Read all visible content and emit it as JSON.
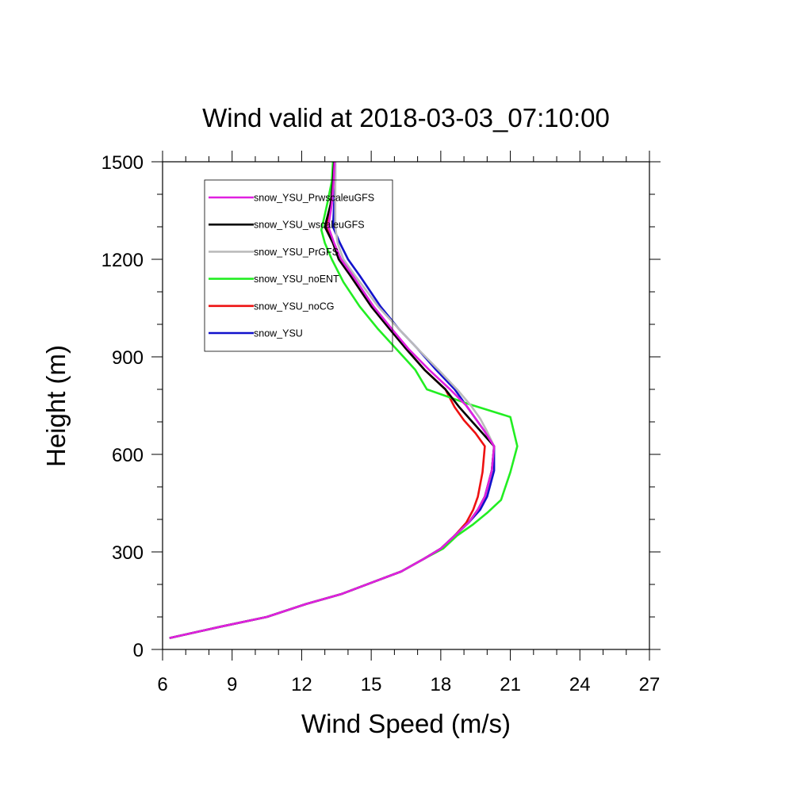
{
  "chart_data": {
    "type": "line",
    "title": "Wind valid at 2018-03-03_07:10:00",
    "xlabel": "Wind Speed (m/s)",
    "ylabel": "Height (m)",
    "xlim": [
      6,
      27
    ],
    "ylim": [
      0,
      1500
    ],
    "xticks": [
      "6",
      "9",
      "12",
      "15",
      "18",
      "21",
      "24",
      "27"
    ],
    "yticks": [
      "0",
      "300",
      "600",
      "900",
      "1200",
      "1500"
    ],
    "legend_position": "top-left",
    "grid": false,
    "series": [
      {
        "name": "snow_YSU_PrwscaleuGFS",
        "color": "#e020e0",
        "points": [
          [
            6.3,
            35
          ],
          [
            8.5,
            70
          ],
          [
            10.5,
            100
          ],
          [
            12.2,
            140
          ],
          [
            13.7,
            170
          ],
          [
            15.0,
            205
          ],
          [
            16.3,
            240
          ],
          [
            17.3,
            280
          ],
          [
            18.0,
            310
          ],
          [
            18.6,
            350
          ],
          [
            19.2,
            390
          ],
          [
            19.6,
            430
          ],
          [
            19.9,
            470
          ],
          [
            20.2,
            550
          ],
          [
            20.3,
            625
          ],
          [
            19.9,
            670
          ],
          [
            19.5,
            710
          ],
          [
            19.1,
            750
          ],
          [
            18.4,
            800
          ],
          [
            17.5,
            860
          ],
          [
            16.6,
            925
          ],
          [
            15.9,
            985
          ],
          [
            15.1,
            1055
          ],
          [
            14.2,
            1150
          ],
          [
            13.7,
            1200
          ],
          [
            13.4,
            1250
          ],
          [
            13.15,
            1300
          ],
          [
            13.3,
            1370
          ],
          [
            13.38,
            1440
          ],
          [
            13.42,
            1500
          ]
        ]
      },
      {
        "name": "snow_YSU_wscaleuGFS",
        "color": "#000000",
        "points": [
          [
            6.3,
            35
          ],
          [
            8.5,
            70
          ],
          [
            10.5,
            100
          ],
          [
            12.2,
            140
          ],
          [
            13.7,
            170
          ],
          [
            15.0,
            205
          ],
          [
            16.3,
            240
          ],
          [
            17.3,
            280
          ],
          [
            18.0,
            310
          ],
          [
            18.6,
            350
          ],
          [
            19.2,
            390
          ],
          [
            19.6,
            430
          ],
          [
            19.9,
            470
          ],
          [
            20.2,
            550
          ],
          [
            20.3,
            625
          ],
          [
            19.8,
            665
          ],
          [
            19.3,
            705
          ],
          [
            18.8,
            745
          ],
          [
            18.2,
            800
          ],
          [
            17.3,
            860
          ],
          [
            16.5,
            925
          ],
          [
            15.8,
            985
          ],
          [
            15.0,
            1055
          ],
          [
            14.1,
            1150
          ],
          [
            13.6,
            1200
          ],
          [
            13.35,
            1250
          ],
          [
            13.0,
            1300
          ],
          [
            13.25,
            1370
          ],
          [
            13.35,
            1440
          ],
          [
            13.4,
            1500
          ]
        ]
      },
      {
        "name": "snow_YSU_PrGFS",
        "color": "#bbbbbb",
        "points": [
          [
            6.3,
            35
          ],
          [
            8.5,
            70
          ],
          [
            10.5,
            100
          ],
          [
            12.2,
            140
          ],
          [
            13.7,
            170
          ],
          [
            15.0,
            205
          ],
          [
            16.3,
            240
          ],
          [
            17.3,
            280
          ],
          [
            18.0,
            310
          ],
          [
            18.6,
            350
          ],
          [
            19.2,
            390
          ],
          [
            19.6,
            430
          ],
          [
            19.9,
            470
          ],
          [
            20.2,
            550
          ],
          [
            20.3,
            625
          ],
          [
            20.0,
            670
          ],
          [
            19.7,
            710
          ],
          [
            19.3,
            750
          ],
          [
            18.7,
            800
          ],
          [
            17.9,
            860
          ],
          [
            17.0,
            925
          ],
          [
            16.2,
            985
          ],
          [
            15.3,
            1055
          ],
          [
            14.3,
            1150
          ],
          [
            13.8,
            1200
          ],
          [
            13.55,
            1250
          ],
          [
            13.45,
            1300
          ],
          [
            13.45,
            1370
          ],
          [
            13.45,
            1440
          ],
          [
            13.45,
            1500
          ]
        ]
      },
      {
        "name": "snow_YSU_noENT",
        "color": "#22ee22",
        "points": [
          [
            6.3,
            35
          ],
          [
            8.5,
            70
          ],
          [
            10.5,
            100
          ],
          [
            12.2,
            140
          ],
          [
            13.7,
            170
          ],
          [
            15.0,
            205
          ],
          [
            16.3,
            240
          ],
          [
            17.3,
            280
          ],
          [
            18.1,
            310
          ],
          [
            18.7,
            350
          ],
          [
            19.4,
            385
          ],
          [
            20.0,
            420
          ],
          [
            20.6,
            460
          ],
          [
            21.0,
            545
          ],
          [
            21.3,
            625
          ],
          [
            21.0,
            715
          ],
          [
            19.2,
            755
          ],
          [
            17.4,
            800
          ],
          [
            16.9,
            860
          ],
          [
            16.2,
            915
          ],
          [
            15.3,
            985
          ],
          [
            14.5,
            1055
          ],
          [
            13.8,
            1130
          ],
          [
            13.3,
            1200
          ],
          [
            13.0,
            1250
          ],
          [
            12.85,
            1290
          ],
          [
            13.1,
            1370
          ],
          [
            13.3,
            1440
          ],
          [
            13.35,
            1500
          ]
        ]
      },
      {
        "name": "snow_YSU_noCG",
        "color": "#ee1111",
        "points": [
          [
            6.3,
            35
          ],
          [
            8.5,
            70
          ],
          [
            10.5,
            100
          ],
          [
            12.2,
            140
          ],
          [
            13.7,
            170
          ],
          [
            15.0,
            205
          ],
          [
            16.3,
            240
          ],
          [
            17.3,
            280
          ],
          [
            18.0,
            310
          ],
          [
            18.6,
            350
          ],
          [
            19.1,
            390
          ],
          [
            19.4,
            430
          ],
          [
            19.6,
            470
          ],
          [
            19.8,
            545
          ],
          [
            19.9,
            625
          ],
          [
            19.5,
            665
          ],
          [
            19.0,
            705
          ],
          [
            18.6,
            745
          ],
          [
            18.2,
            800
          ],
          [
            17.3,
            860
          ],
          [
            16.5,
            925
          ],
          [
            15.8,
            985
          ],
          [
            15.0,
            1055
          ],
          [
            14.1,
            1150
          ],
          [
            13.6,
            1200
          ],
          [
            13.35,
            1250
          ],
          [
            13.05,
            1300
          ],
          [
            13.25,
            1370
          ],
          [
            13.35,
            1440
          ],
          [
            13.4,
            1500
          ]
        ]
      },
      {
        "name": "snow_YSU",
        "color": "#1111cc",
        "points": [
          [
            6.3,
            35
          ],
          [
            8.5,
            70
          ],
          [
            10.5,
            100
          ],
          [
            12.2,
            140
          ],
          [
            13.7,
            170
          ],
          [
            15.0,
            205
          ],
          [
            16.3,
            240
          ],
          [
            17.3,
            280
          ],
          [
            18.0,
            310
          ],
          [
            18.6,
            350
          ],
          [
            19.2,
            390
          ],
          [
            19.7,
            430
          ],
          [
            20.0,
            470
          ],
          [
            20.3,
            550
          ],
          [
            20.3,
            625
          ],
          [
            19.9,
            670
          ],
          [
            19.5,
            710
          ],
          [
            19.1,
            750
          ],
          [
            18.6,
            800
          ],
          [
            17.8,
            860
          ],
          [
            17.0,
            925
          ],
          [
            16.2,
            985
          ],
          [
            15.4,
            1055
          ],
          [
            14.5,
            1150
          ],
          [
            14.0,
            1200
          ],
          [
            13.65,
            1250
          ],
          [
            13.35,
            1300
          ],
          [
            13.4,
            1370
          ],
          [
            13.45,
            1440
          ],
          [
            13.45,
            1500
          ]
        ]
      }
    ]
  }
}
